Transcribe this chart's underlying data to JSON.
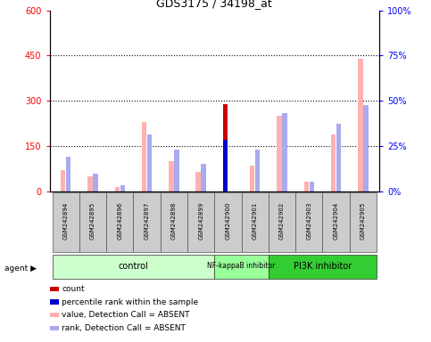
{
  "title": "GDS3175 / 34198_at",
  "samples": [
    "GSM242894",
    "GSM242895",
    "GSM242896",
    "GSM242897",
    "GSM242898",
    "GSM242899",
    "GSM242900",
    "GSM242901",
    "GSM242902",
    "GSM242903",
    "GSM242904",
    "GSM242905"
  ],
  "count_values": [
    0,
    0,
    0,
    0,
    0,
    0,
    290,
    0,
    0,
    0,
    0,
    0
  ],
  "rank_values": [
    0,
    0,
    0,
    0,
    0,
    0,
    170,
    0,
    0,
    0,
    0,
    0
  ],
  "pink_values": [
    70,
    50,
    15,
    230,
    100,
    65,
    0,
    85,
    250,
    32,
    190,
    440
  ],
  "blue_values": [
    115,
    58,
    22,
    190,
    140,
    92,
    0,
    140,
    260,
    33,
    225,
    285
  ],
  "ylim_left": [
    0,
    600
  ],
  "ylim_right": [
    0,
    100
  ],
  "yticks_left": [
    0,
    150,
    300,
    450,
    600
  ],
  "yticks_right": [
    0,
    25,
    50,
    75,
    100
  ],
  "bar_width": 0.18,
  "pink_color": "#ffb0b0",
  "blue_color": "#aaaaee",
  "red_color": "#cc0000",
  "dark_blue_color": "#0000cc",
  "plot_bg": "#ffffff",
  "group_ranges": [
    [
      0,
      5,
      "control",
      "#ccffcc"
    ],
    [
      6,
      7,
      "NF-kappaB inhibitor",
      "#99ff99"
    ],
    [
      8,
      11,
      "PI3K inhibitor",
      "#33cc33"
    ]
  ],
  "legend_items": [
    [
      "#cc0000",
      "count"
    ],
    [
      "#0000cc",
      "percentile rank within the sample"
    ],
    [
      "#ffb0b0",
      "value, Detection Call = ABSENT"
    ],
    [
      "#aaaaee",
      "rank, Detection Call = ABSENT"
    ]
  ]
}
